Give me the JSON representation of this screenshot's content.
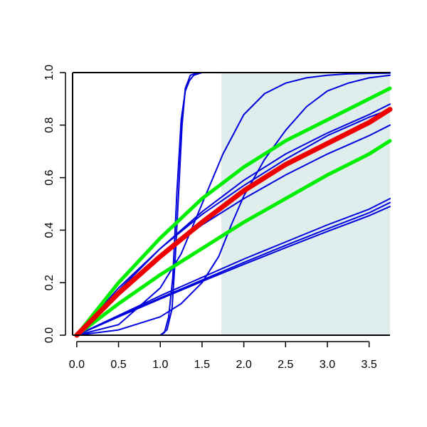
{
  "chart_data": {
    "type": "line",
    "title": "",
    "xlabel": "",
    "ylabel": "",
    "xlim": [
      -0.05,
      3.75
    ],
    "ylim": [
      0,
      1
    ],
    "x_ticks": [
      0.0,
      0.5,
      1.0,
      1.5,
      2.0,
      2.5,
      3.0,
      3.5
    ],
    "x_tick_labels": [
      "0.0",
      "0.5",
      "1.0",
      "1.5",
      "2.0",
      "2.5",
      "3.0",
      "3.5"
    ],
    "y_ticks": [
      0.0,
      0.2,
      0.4,
      0.6,
      0.8,
      1.0
    ],
    "y_tick_labels": [
      "0.0",
      "0.2",
      "0.4",
      "0.6",
      "0.8",
      "1.0"
    ],
    "grid": false,
    "legend": "none",
    "shaded_region": {
      "x_from": 1.73,
      "x_to": 3.75,
      "color": "#e0eded"
    },
    "series": [
      {
        "color": "#0000dd",
        "width": "thin",
        "x": [
          0,
          1.0,
          1.08,
          1.14,
          1.18,
          1.22,
          1.26,
          1.3,
          1.36,
          1.45,
          1.73,
          3.75
        ],
        "y": [
          0,
          0.0,
          0.02,
          0.1,
          0.3,
          0.55,
          0.8,
          0.94,
          0.99,
          1.0,
          1.0,
          1.0
        ]
      },
      {
        "color": "#0000dd",
        "width": "thin",
        "x": [
          0,
          1.0,
          1.05,
          1.1,
          1.15,
          1.2,
          1.25,
          1.3,
          1.35,
          1.4,
          1.45,
          1.5,
          1.6,
          1.73,
          3.75
        ],
        "y": [
          0,
          0.0,
          0.01,
          0.07,
          0.22,
          0.55,
          0.82,
          0.93,
          0.97,
          0.99,
          0.995,
          1.0,
          1.0,
          1.0,
          1.0
        ]
      },
      {
        "color": "#0000dd",
        "width": "thin",
        "x": [
          0,
          0.5,
          1.0,
          1.25,
          1.5,
          1.75,
          2.0,
          2.25,
          2.5,
          2.75,
          3.0,
          3.25,
          3.5,
          3.75
        ],
        "y": [
          0,
          0.04,
          0.18,
          0.31,
          0.5,
          0.69,
          0.84,
          0.92,
          0.96,
          0.98,
          0.99,
          0.995,
          0.997,
          0.998
        ]
      },
      {
        "color": "#0000dd",
        "width": "thin",
        "x": [
          0,
          0.5,
          1.0,
          1.25,
          1.5,
          1.7,
          1.85,
          2.0,
          2.25,
          2.5,
          2.75,
          3.0,
          3.25,
          3.5,
          3.75
        ],
        "y": [
          0,
          0.02,
          0.07,
          0.12,
          0.2,
          0.3,
          0.42,
          0.53,
          0.67,
          0.78,
          0.87,
          0.93,
          0.96,
          0.98,
          0.99
        ]
      },
      {
        "color": "#0000dd",
        "width": "thin",
        "x": [
          0,
          0.5,
          1.0,
          1.5,
          2.0,
          2.5,
          3.0,
          3.5,
          3.75
        ],
        "y": [
          0,
          0.18,
          0.33,
          0.46,
          0.57,
          0.67,
          0.76,
          0.83,
          0.86
        ]
      },
      {
        "color": "#0000dd",
        "width": "thin",
        "x": [
          0,
          0.5,
          1.0,
          1.5,
          2.0,
          2.5,
          3.0,
          3.5,
          3.75
        ],
        "y": [
          0,
          0.17,
          0.33,
          0.47,
          0.59,
          0.69,
          0.77,
          0.84,
          0.88
        ]
      },
      {
        "color": "#0000dd",
        "width": "thin",
        "x": [
          0,
          0.5,
          1.0,
          1.5,
          2.0,
          2.5,
          3.0,
          3.5,
          3.75
        ],
        "y": [
          0,
          0.16,
          0.3,
          0.42,
          0.52,
          0.61,
          0.69,
          0.76,
          0.8
        ]
      },
      {
        "color": "#0000dd",
        "width": "thin",
        "x": [
          0,
          0.5,
          1.0,
          1.5,
          2.0,
          2.5,
          3.0,
          3.5,
          3.75
        ],
        "y": [
          0,
          0.075,
          0.15,
          0.22,
          0.29,
          0.355,
          0.42,
          0.48,
          0.52
        ]
      },
      {
        "color": "#0000dd",
        "width": "thin",
        "x": [
          0,
          0.5,
          1.0,
          1.5,
          2.0,
          2.5,
          3.0,
          3.5,
          3.75
        ],
        "y": [
          0,
          0.072,
          0.142,
          0.21,
          0.277,
          0.342,
          0.405,
          0.466,
          0.505
        ]
      },
      {
        "color": "#0000dd",
        "width": "thin",
        "x": [
          0,
          0.5,
          1.0,
          1.5,
          2.0,
          2.5,
          3.0,
          3.5,
          3.75
        ],
        "y": [
          0,
          0.07,
          0.138,
          0.205,
          0.27,
          0.333,
          0.395,
          0.455,
          0.49
        ]
      },
      {
        "color": "#00ee00",
        "width": "thick",
        "x": [
          0,
          0.5,
          1.0,
          1.5,
          2.0,
          2.5,
          3.0,
          3.5,
          3.75
        ],
        "y": [
          0,
          0.2,
          0.37,
          0.52,
          0.64,
          0.74,
          0.82,
          0.9,
          0.94
        ]
      },
      {
        "color": "#00ee00",
        "width": "thick",
        "x": [
          0,
          0.5,
          1.0,
          1.5,
          2.0,
          2.5,
          3.0,
          3.5,
          3.75
        ],
        "y": [
          0,
          0.12,
          0.23,
          0.33,
          0.43,
          0.52,
          0.61,
          0.69,
          0.74
        ]
      },
      {
        "color": "#ee0000",
        "width": "thicker",
        "x": [
          0,
          0.5,
          1.0,
          1.5,
          2.0,
          2.5,
          3.0,
          3.5,
          3.75
        ],
        "y": [
          0,
          0.16,
          0.3,
          0.43,
          0.55,
          0.65,
          0.73,
          0.81,
          0.86
        ]
      }
    ]
  }
}
